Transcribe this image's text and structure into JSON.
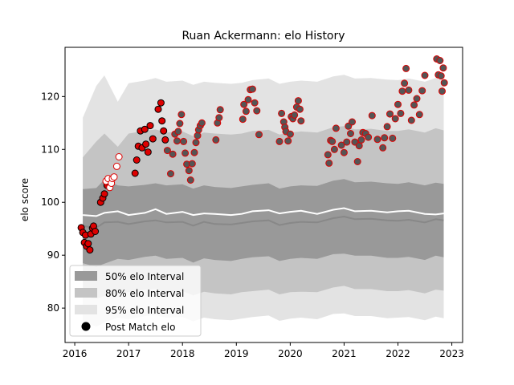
{
  "chart_data": {
    "type": "scatter",
    "title": "Ruan Ackermann: elo History",
    "xlabel": "",
    "ylabel": "elo score",
    "xlim": [
      2015.82,
      2023.2
    ],
    "ylim": [
      73.5,
      129.3
    ],
    "xticks": [
      2016,
      2017,
      2018,
      2019,
      2020,
      2021,
      2022,
      2023
    ],
    "yticks": [
      80,
      90,
      100,
      110,
      120
    ],
    "grid": false,
    "legend_position": "lower-left",
    "legend": [
      {
        "label": "50% elo Interval",
        "kind": "band50"
      },
      {
        "label": "80% elo Interval",
        "kind": "band80"
      },
      {
        "label": "95% elo Interval",
        "kind": "band95"
      },
      {
        "label": "Post Match elo",
        "kind": "marker"
      }
    ],
    "colors": {
      "band50": "#999999",
      "band80": "#c4c4c4",
      "band95": "#e3e3e3",
      "mean_line": "#888888",
      "median_line": "#ffffff",
      "marker_early_fill": "#dd0000",
      "marker_early_edge": "#000000",
      "marker_open_edge": "#dd0000",
      "marker_late_fill": "#555555",
      "marker_late_edge": "#dd0000"
    },
    "bands": {
      "x": [
        2016.15,
        2016.4,
        2016.55,
        2016.8,
        2017.0,
        2017.3,
        2017.5,
        2017.7,
        2018.0,
        2018.2,
        2018.4,
        2018.6,
        2018.9,
        2019.1,
        2019.3,
        2019.6,
        2019.8,
        2020.0,
        2020.2,
        2020.5,
        2020.8,
        2021.0,
        2021.2,
        2021.5,
        2021.8,
        2022.0,
        2022.2,
        2022.5,
        2022.7,
        2022.85
      ],
      "mean": [
        95.5,
        95.2,
        96.2,
        96.3,
        95.9,
        96.4,
        96.6,
        96.2,
        96.3,
        95.6,
        96.3,
        95.9,
        95.8,
        96.1,
        96.4,
        96.6,
        95.7,
        96.1,
        96.3,
        96.2,
        97.0,
        97.3,
        96.8,
        96.9,
        96.6,
        96.5,
        96.7,
        96.2,
        96.8,
        96.6
      ],
      "median": [
        97.6,
        97.4,
        98.0,
        98.3,
        97.6,
        98.0,
        98.7,
        97.8,
        98.2,
        97.6,
        97.9,
        97.8,
        97.6,
        97.8,
        98.3,
        98.5,
        97.9,
        98.2,
        98.4,
        97.8,
        98.6,
        98.9,
        98.3,
        98.4,
        98.1,
        98.3,
        98.4,
        97.8,
        97.7,
        97.9
      ],
      "p50_low": [
        88.5,
        87.8,
        88.4,
        89.3,
        89.1,
        89.7,
        89.9,
        89.3,
        89.5,
        88.6,
        89.4,
        89.1,
        88.9,
        89.3,
        89.6,
        89.8,
        88.9,
        89.3,
        89.5,
        89.3,
        90.2,
        90.3,
        89.9,
        89.9,
        89.5,
        89.5,
        89.7,
        89.1,
        89.9,
        89.6
      ],
      "p50_high": [
        102.5,
        102.7,
        104.3,
        103.2,
        103.0,
        103.3,
        103.6,
        103.2,
        103.4,
        102.6,
        103.2,
        102.9,
        102.7,
        103.0,
        103.3,
        103.6,
        102.6,
        103.0,
        103.2,
        103.1,
        104.1,
        104.4,
        103.8,
        103.9,
        103.6,
        103.5,
        103.8,
        103.2,
        103.7,
        103.5
      ],
      "p80_low": [
        82.2,
        81.8,
        82.3,
        82.8,
        83.0,
        83.5,
        83.6,
        83.0,
        83.2,
        82.4,
        83.1,
        82.8,
        82.6,
        83.0,
        83.2,
        83.5,
        82.6,
        83.0,
        83.1,
        83.0,
        83.9,
        84.2,
        83.6,
        83.6,
        83.2,
        83.2,
        83.4,
        82.8,
        83.5,
        83.3
      ],
      "p80_high": [
        108.5,
        111.5,
        113.0,
        110.5,
        113.0,
        113.5,
        113.8,
        113.2,
        113.4,
        112.5,
        113.2,
        113.0,
        112.8,
        113.0,
        113.5,
        113.7,
        112.8,
        113.2,
        113.4,
        113.2,
        114.2,
        114.4,
        113.8,
        113.9,
        113.5,
        113.5,
        113.8,
        113.2,
        114.0,
        113.6
      ],
      "p95_low": [
        77.5,
        76.5,
        77.3,
        78.2,
        77.9,
        78.5,
        78.7,
        78.2,
        78.3,
        77.5,
        78.2,
        77.9,
        77.7,
        78.0,
        78.3,
        78.6,
        77.6,
        78.0,
        78.2,
        77.9,
        78.9,
        79.0,
        78.5,
        78.5,
        78.1,
        78.2,
        78.3,
        77.7,
        78.4,
        78.1
      ],
      "p95_high": [
        116.0,
        122.0,
        124.0,
        119.0,
        122.5,
        123.0,
        123.5,
        122.8,
        123.0,
        122.2,
        122.8,
        122.6,
        122.4,
        122.6,
        123.1,
        123.4,
        122.4,
        122.8,
        123.0,
        122.8,
        123.8,
        124.1,
        123.4,
        123.5,
        123.2,
        123.1,
        123.4,
        122.8,
        123.5,
        123.2
      ]
    },
    "series_early": {
      "x": [
        2016.12,
        2016.15,
        2016.18,
        2016.2,
        2016.22,
        2016.25,
        2016.28,
        2016.3,
        2016.33,
        2016.35,
        2016.38,
        2016.48,
        2016.52,
        2016.55,
        2016.6,
        2016.63,
        2017.12,
        2017.15,
        2017.18,
        2017.22,
        2017.25,
        2017.3,
        2017.32,
        2017.36,
        2017.4,
        2017.45,
        2017.55,
        2017.6,
        2017.62,
        2017.65,
        2017.68
      ],
      "y": [
        95.2,
        94.3,
        92.4,
        93.8,
        91.7,
        92.2,
        91.0,
        94.0,
        95.1,
        95.5,
        94.5,
        100.0,
        100.8,
        101.6,
        103.2,
        103.8,
        105.5,
        108.0,
        110.6,
        113.5,
        110.3,
        113.8,
        111.0,
        109.5,
        114.5,
        112.0,
        117.6,
        118.8,
        115.4,
        113.5,
        111.8
      ]
    },
    "series_open": {
      "x": [
        2016.58,
        2016.62,
        2016.65,
        2016.68,
        2016.7,
        2016.73,
        2016.78,
        2016.82
      ],
      "y": [
        104.0,
        104.5,
        102.8,
        103.6,
        104.5,
        104.8,
        106.8,
        108.6
      ]
    },
    "series_late": {
      "x": [
        2017.72,
        2017.78,
        2017.82,
        2017.86,
        2017.9,
        2017.92,
        2017.95,
        2017.98,
        2018.02,
        2018.05,
        2018.08,
        2018.12,
        2018.15,
        2018.18,
        2018.22,
        2018.25,
        2018.28,
        2018.3,
        2018.33,
        2018.36,
        2018.62,
        2018.65,
        2018.68,
        2018.7,
        2019.12,
        2019.14,
        2019.18,
        2019.22,
        2019.26,
        2019.3,
        2019.34,
        2019.38,
        2019.42,
        2019.8,
        2019.84,
        2019.88,
        2019.9,
        2019.92,
        2019.96,
        2020.0,
        2020.02,
        2020.05,
        2020.08,
        2020.12,
        2020.15,
        2020.18,
        2020.2,
        2020.7,
        2020.72,
        2020.75,
        2020.78,
        2020.82,
        2020.85,
        2020.95,
        2021.0,
        2021.05,
        2021.08,
        2021.12,
        2021.15,
        2021.2,
        2021.25,
        2021.28,
        2021.32,
        2021.35,
        2021.4,
        2021.45,
        2021.52,
        2021.62,
        2021.72,
        2021.75,
        2021.8,
        2021.85,
        2021.9,
        2021.95,
        2022.0,
        2022.05,
        2022.08,
        2022.12,
        2022.15,
        2022.2,
        2022.25,
        2022.3,
        2022.35,
        2022.4,
        2022.45,
        2022.5,
        2022.72,
        2022.75,
        2022.78,
        2022.8,
        2022.82,
        2022.84,
        2022.86
      ],
      "y": [
        109.8,
        105.4,
        109.1,
        112.9,
        111.6,
        113.4,
        114.9,
        116.6,
        111.5,
        109.3,
        107.2,
        106.0,
        104.2,
        107.3,
        109.4,
        111.3,
        112.6,
        113.7,
        114.5,
        115.0,
        111.8,
        115.0,
        116.0,
        117.5,
        115.7,
        118.5,
        117.2,
        119.4,
        121.3,
        121.4,
        118.8,
        117.3,
        112.8,
        111.5,
        116.8,
        115.2,
        114.2,
        113.4,
        111.6,
        112.9,
        116.2,
        115.8,
        116.5,
        118.0,
        119.2,
        117.6,
        115.4,
        109.0,
        107.4,
        111.7,
        111.5,
        110.0,
        114.0,
        110.8,
        109.4,
        111.4,
        114.4,
        113.0,
        115.2,
        111.4,
        107.7,
        110.7,
        111.8,
        113.2,
        113.0,
        112.3,
        116.4,
        111.9,
        110.3,
        112.2,
        114.3,
        116.7,
        112.1,
        115.8,
        118.5,
        116.8,
        121.0,
        122.5,
        125.3,
        121.2,
        115.5,
        118.4,
        119.6,
        116.6,
        121.1,
        124.0,
        127.1,
        124.1,
        126.8,
        123.9,
        121.0,
        125.4,
        122.6
      ]
    }
  }
}
